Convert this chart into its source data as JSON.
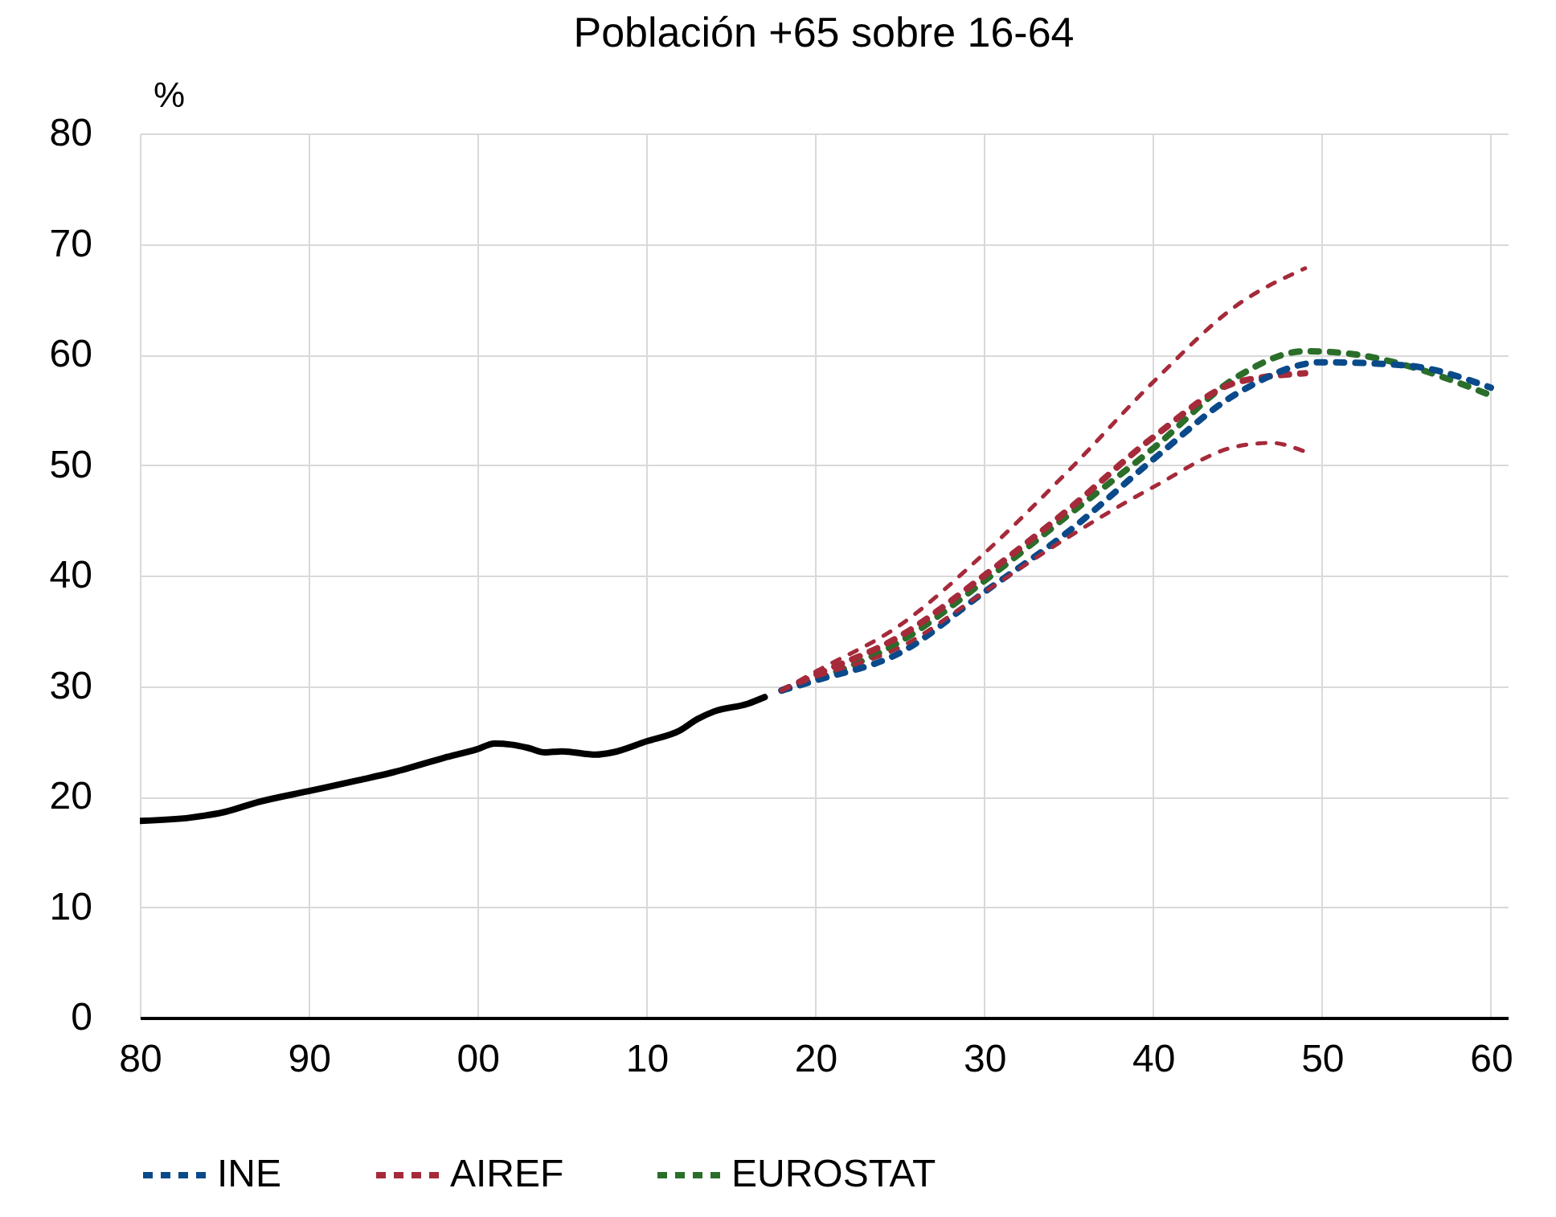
{
  "chart_data": {
    "type": "line",
    "title": "Población +65 sobre 16-64",
    "ylabel": "%",
    "xlim": [
      1980,
      2061
    ],
    "xticks": [
      {
        "value": 1980,
        "label": "80"
      },
      {
        "value": 1990,
        "label": "90"
      },
      {
        "value": 2000,
        "label": "00"
      },
      {
        "value": 2010,
        "label": "10"
      },
      {
        "value": 2020,
        "label": "20"
      },
      {
        "value": 2030,
        "label": "30"
      },
      {
        "value": 2040,
        "label": "40"
      },
      {
        "value": 2050,
        "label": "50"
      },
      {
        "value": 2060,
        "label": "60"
      }
    ],
    "ylim": [
      0,
      80
    ],
    "yticks": [
      0,
      10,
      20,
      30,
      40,
      50,
      60,
      70,
      80
    ],
    "grid": true,
    "legend": "bottom",
    "marker": "none",
    "series": [
      {
        "color": "#000000",
        "line_style": "solid",
        "x": [
          1980,
          1983,
          1985,
          1987,
          1990,
          1993,
          1995,
          1998,
          2000,
          2001,
          2002,
          2003,
          2004,
          2005,
          2007,
          2008,
          2010,
          2012,
          2013,
          2014,
          2016,
          2017
        ],
        "values": [
          17.8,
          18.1,
          18.6,
          19.5,
          20.5,
          21.5,
          22.2,
          23.5,
          24.3,
          24.8,
          24.7,
          24.4,
          24.0,
          24.1,
          23.8,
          24.0,
          25.0,
          26.0,
          27.0,
          27.7,
          28.4,
          29.0
        ]
      },
      {
        "color": "#a52a3a",
        "line_style": "dashed",
        "x": [
          2018,
          2020,
          2025,
          2030,
          2035,
          2040,
          2045,
          2049
        ],
        "values": [
          29.6,
          31.3,
          35.5,
          42.0,
          49.5,
          57.5,
          64.5,
          67.8
        ]
      },
      {
        "color": "#a52a3a",
        "line_style": "dashed",
        "x": [
          2018,
          2020,
          2025,
          2030,
          2035,
          2040,
          2045,
          2047,
          2049
        ],
        "values": [
          29.6,
          30.8,
          33.5,
          38.5,
          43.5,
          48.0,
          51.7,
          52.0,
          51.2
        ]
      },
      {
        "name": "INE",
        "color": "#0a4a8a",
        "line_style": "dashed",
        "x": [
          2018,
          2020,
          2025,
          2030,
          2035,
          2040,
          2045,
          2050,
          2055,
          2060
        ],
        "values": [
          29.6,
          30.5,
          33.0,
          38.5,
          44.0,
          50.5,
          56.5,
          59.3,
          59.0,
          57.0
        ]
      },
      {
        "name": "AIREF",
        "color": "#a52a3a",
        "line_style": "dashed",
        "x": [
          2018,
          2020,
          2025,
          2030,
          2035,
          2040,
          2045,
          2049
        ],
        "values": [
          29.6,
          31.0,
          34.5,
          40.0,
          46.0,
          52.5,
          57.5,
          58.3
        ]
      },
      {
        "name": "EUROSTAT",
        "color": "#2a6e2a",
        "line_style": "dashed",
        "x": [
          2018,
          2020,
          2025,
          2030,
          2035,
          2040,
          2045,
          2049,
          2052,
          2055,
          2060
        ],
        "values": [
          29.6,
          30.6,
          34.0,
          39.5,
          45.5,
          51.5,
          58.0,
          60.3,
          60.0,
          59.0,
          56.3
        ]
      }
    ]
  }
}
